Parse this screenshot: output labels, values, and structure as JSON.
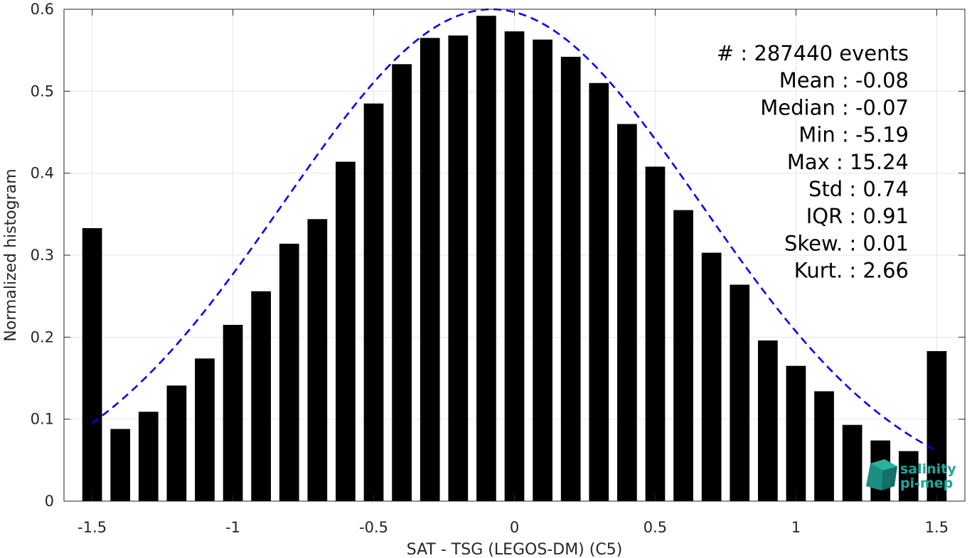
{
  "chart_data": {
    "type": "bar",
    "xlabel": "SAT - TSG (LEGOS-DM) (C5)",
    "ylabel": "Normalized histogram",
    "xlim": [
      -1.6,
      1.6
    ],
    "ylim": [
      0,
      0.6
    ],
    "grid": true,
    "xticks": [
      -1.5,
      -1,
      -0.5,
      0,
      0.5,
      1,
      1.5
    ],
    "xtick_labels": [
      "-1.5",
      "-1",
      "-0.5",
      "0",
      "0.5",
      "1",
      "1.5"
    ],
    "yticks": [
      0,
      0.1,
      0.2,
      0.3,
      0.4,
      0.5,
      0.6
    ],
    "ytick_labels": [
      "0",
      "0.1",
      "0.2",
      "0.3",
      "0.4",
      "0.5",
      "0.6"
    ],
    "bar_color": "#000000",
    "x": [
      -1.5,
      -1.4,
      -1.3,
      -1.2,
      -1.1,
      -1.0,
      -0.9,
      -0.8,
      -0.7,
      -0.6,
      -0.5,
      -0.4,
      -0.3,
      -0.2,
      -0.1,
      0.0,
      0.1,
      0.2,
      0.3,
      0.4,
      0.5,
      0.6,
      0.7,
      0.8,
      0.9,
      1.0,
      1.1,
      1.2,
      1.3,
      1.4,
      1.5
    ],
    "values": [
      0.333,
      0.088,
      0.109,
      0.141,
      0.174,
      0.215,
      0.256,
      0.314,
      0.344,
      0.414,
      0.485,
      0.533,
      0.565,
      0.568,
      0.592,
      0.573,
      0.563,
      0.542,
      0.51,
      0.46,
      0.408,
      0.355,
      0.303,
      0.264,
      0.196,
      0.165,
      0.134,
      0.093,
      0.074,
      0.061,
      0.183
    ],
    "fit_curve": {
      "style": "dashed",
      "color": "#0000ff",
      "mean": -0.08,
      "std": 0.74,
      "peak": 0.6,
      "x_range": [
        -1.5,
        1.5
      ]
    },
    "stats": [
      {
        "label": "#  : 287440 events"
      },
      {
        "label": "Mean : -0.08"
      },
      {
        "label": "Median : -0.07"
      },
      {
        "label": "Min : -5.19"
      },
      {
        "label": "Max : 15.24"
      },
      {
        "label": "Std : 0.74"
      },
      {
        "label": "IQR : 0.91"
      },
      {
        "label": "Skew. : 0.01"
      },
      {
        "label": "Kurt. : 2.66"
      }
    ]
  },
  "logo": {
    "line1": "salinity",
    "line2": "pi-mep",
    "color": "#1fa89a"
  }
}
